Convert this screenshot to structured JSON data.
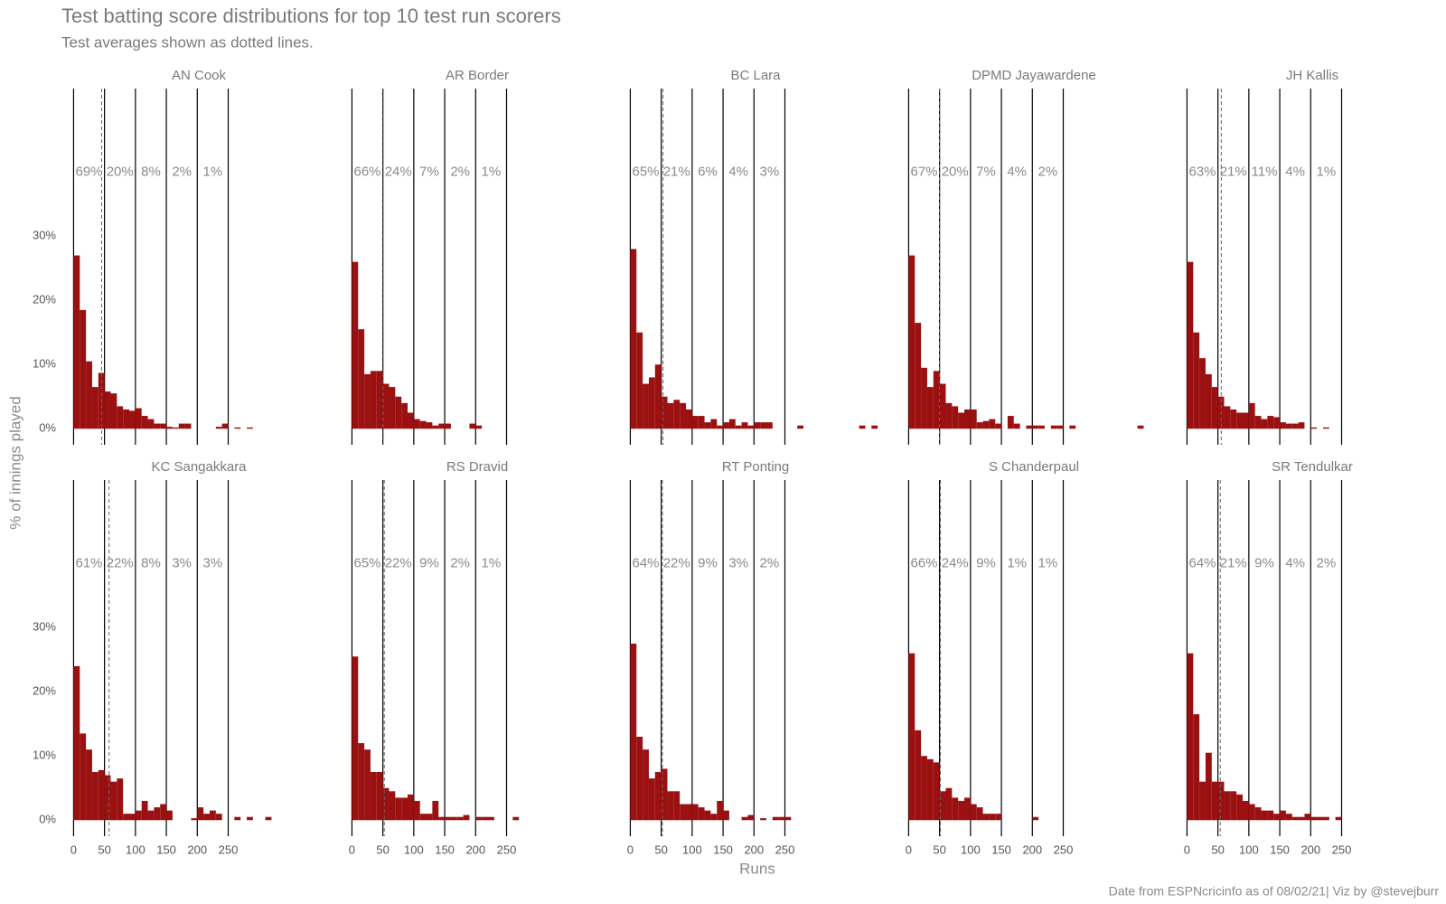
{
  "title": "Test batting score distributions for top 10 test run scorers",
  "subtitle": "Test averages shown as dotted lines.",
  "x_label": "Runs",
  "y_label": "% of innings played",
  "caption": "Date from ESPNcricinfo as of 08/02/21| Viz by @stevejburr",
  "chart_data": [
    {
      "type": "histogram",
      "title": "AN Cook",
      "color": "#9b1111",
      "average": 45.35,
      "bins": [
        0,
        10,
        20,
        30,
        40,
        50,
        60,
        70,
        80,
        90,
        100,
        110,
        120,
        130,
        140,
        150,
        160,
        170,
        180,
        190,
        200,
        210,
        220,
        230,
        240,
        250,
        260,
        270,
        280,
        290,
        300
      ],
      "values": [
        27,
        18.5,
        10.5,
        6.5,
        8.7,
        5.8,
        5.5,
        3.5,
        3,
        2.8,
        3.2,
        2,
        1.5,
        0.8,
        0.8,
        0.3,
        0.2,
        0.8,
        0.8,
        0,
        0,
        0,
        0,
        0.3,
        0.8,
        0,
        0.2,
        0,
        0.2,
        0
      ],
      "band_shares": {
        "values": [
          69,
          20,
          8,
          2,
          1
        ],
        "value_labels": [
          "69%",
          "20%",
          "8%",
          "2%",
          "1%"
        ]
      },
      "xlim": [
        -5,
        410
      ],
      "ylim": [
        -2.5,
        53
      ],
      "xticks": [
        0,
        50,
        100,
        150,
        200,
        250
      ],
      "yticks": [
        {
          "value": 0,
          "label": "0%"
        },
        {
          "value": 10,
          "label": "10%"
        },
        {
          "value": 20,
          "label": "20%"
        },
        {
          "value": 30,
          "label": "30%"
        }
      ]
    },
    {
      "type": "histogram",
      "title": "AR Border",
      "color": "#9b1111",
      "average": 50.56,
      "bins": [
        0,
        10,
        20,
        30,
        40,
        50,
        60,
        70,
        80,
        90,
        100,
        110,
        120,
        130,
        140,
        150,
        160,
        170,
        180,
        190,
        200,
        210
      ],
      "values": [
        26,
        15.5,
        8.5,
        9,
        9,
        7,
        6.5,
        5,
        4,
        2.5,
        1.5,
        1.2,
        1,
        0.5,
        0.8,
        0.8,
        0,
        0,
        0,
        0.8,
        0.5
      ],
      "band_shares": {
        "values": [
          66,
          24,
          7,
          2,
          1
        ],
        "value_labels": [
          "66%",
          "24%",
          "7%",
          "2%",
          "1%"
        ]
      },
      "xlim": [
        -5,
        410
      ],
      "ylim": [
        -2.5,
        53
      ],
      "xticks": [
        0,
        50,
        100,
        150,
        200,
        250
      ]
    },
    {
      "type": "histogram",
      "title": "BC Lara",
      "color": "#9b1111",
      "average": 52.88,
      "bins": [
        0,
        10,
        20,
        30,
        40,
        50,
        60,
        70,
        80,
        90,
        100,
        110,
        120,
        130,
        140,
        150,
        160,
        170,
        180,
        190,
        200,
        210,
        220,
        230,
        240,
        250,
        260,
        270,
        280,
        290,
        300,
        310,
        320,
        330,
        340,
        350,
        360,
        370,
        380,
        390,
        400
      ],
      "values": [
        28,
        15,
        7,
        8,
        10,
        5,
        4,
        4.5,
        4,
        3,
        2,
        2,
        1,
        1.5,
        0.5,
        1,
        1.5,
        0.5,
        1,
        0.5,
        1,
        1,
        1,
        0,
        0,
        0,
        0,
        0.5,
        0,
        0,
        0,
        0,
        0,
        0,
        0,
        0,
        0,
        0.5,
        0,
        0.5
      ],
      "band_shares": {
        "values": [
          65,
          21,
          6,
          4,
          3
        ],
        "value_labels": [
          "65%",
          "21%",
          "6%",
          "4%",
          "3%"
        ]
      },
      "xlim": [
        -5,
        410
      ],
      "ylim": [
        -2.5,
        53
      ],
      "xticks": [
        0,
        50,
        100,
        150,
        200,
        250
      ]
    },
    {
      "type": "histogram",
      "title": "DPMD Jayawardene",
      "color": "#9b1111",
      "average": 49.84,
      "bins": [
        0,
        10,
        20,
        30,
        40,
        50,
        60,
        70,
        80,
        90,
        100,
        110,
        120,
        130,
        140,
        150,
        160,
        170,
        180,
        190,
        200,
        210,
        220,
        230,
        240,
        250,
        260,
        270,
        280,
        290,
        300,
        310,
        320,
        330,
        340,
        350,
        360,
        370,
        380
      ],
      "values": [
        27,
        16.5,
        9.5,
        6.5,
        9,
        7,
        4,
        3.5,
        2.5,
        3,
        3,
        1,
        1.2,
        1.5,
        0.8,
        0,
        2,
        0.8,
        0,
        0.5,
        0.5,
        0.5,
        0,
        0.5,
        0.5,
        0,
        0.5,
        0,
        0,
        0,
        0,
        0,
        0,
        0,
        0,
        0,
        0,
        0.5
      ],
      "band_shares": {
        "values": [
          67,
          20,
          7,
          4,
          2
        ],
        "value_labels": [
          "67%",
          "20%",
          "7%",
          "4%",
          "2%"
        ]
      },
      "xlim": [
        -5,
        410
      ],
      "ylim": [
        -2.5,
        53
      ],
      "xticks": [
        0,
        50,
        100,
        150,
        200,
        250
      ]
    },
    {
      "type": "histogram",
      "title": "JH Kallis",
      "color": "#9b1111",
      "average": 55.37,
      "bins": [
        0,
        10,
        20,
        30,
        40,
        50,
        60,
        70,
        80,
        90,
        100,
        110,
        120,
        130,
        140,
        150,
        160,
        170,
        180,
        190,
        200,
        210,
        220,
        230
      ],
      "values": [
        26,
        15,
        11,
        8.5,
        6.5,
        5,
        3.5,
        3,
        2.5,
        2.5,
        4,
        2,
        1.5,
        2,
        1.8,
        1,
        0.8,
        0.8,
        1,
        0,
        0.2,
        0,
        0.2
      ],
      "band_shares": {
        "values": [
          63,
          21,
          11,
          4,
          1
        ],
        "value_labels": [
          "63%",
          "21%",
          "11%",
          "4%",
          "1%"
        ]
      },
      "xlim": [
        -5,
        410
      ],
      "ylim": [
        -2.5,
        53
      ],
      "xticks": [
        0,
        50,
        100,
        150,
        200,
        250
      ]
    },
    {
      "type": "histogram",
      "title": "KC Sangakkara",
      "color": "#9b1111",
      "average": 57.4,
      "bins": [
        0,
        10,
        20,
        30,
        40,
        50,
        60,
        70,
        80,
        90,
        100,
        110,
        120,
        130,
        140,
        150,
        160,
        170,
        180,
        190,
        200,
        210,
        220,
        230,
        240,
        250,
        260,
        270,
        280,
        290,
        300,
        310,
        320
      ],
      "values": [
        24,
        13.5,
        11,
        7.5,
        7.8,
        7,
        6,
        6.5,
        1,
        1,
        1.5,
        3,
        1.5,
        2,
        2.5,
        1.5,
        0,
        0,
        0,
        0.3,
        2,
        1,
        1.5,
        1,
        0,
        0,
        0.5,
        0,
        0.5,
        0,
        0,
        0.5
      ],
      "band_shares": {
        "values": [
          61,
          22,
          8,
          3,
          3
        ],
        "value_labels": [
          "61%",
          "22%",
          "8%",
          "3%",
          "3%"
        ]
      },
      "xlim": [
        -5,
        410
      ],
      "ylim": [
        -2.5,
        53
      ],
      "xticks": [
        0,
        50,
        100,
        150,
        200,
        250
      ],
      "yticks": [
        {
          "value": 0,
          "label": "0%"
        },
        {
          "value": 10,
          "label": "10%"
        },
        {
          "value": 20,
          "label": "20%"
        },
        {
          "value": 30,
          "label": "30%"
        }
      ]
    },
    {
      "type": "histogram",
      "title": "RS Dravid",
      "color": "#9b1111",
      "average": 52.31,
      "bins": [
        0,
        10,
        20,
        30,
        40,
        50,
        60,
        70,
        80,
        90,
        100,
        110,
        120,
        130,
        140,
        150,
        160,
        170,
        180,
        190,
        200,
        210,
        220,
        230,
        240,
        250,
        260,
        270
      ],
      "values": [
        25.5,
        12,
        11,
        7.5,
        7.5,
        5,
        4.5,
        3.5,
        3.5,
        4,
        3,
        1,
        1,
        3,
        0.5,
        0.5,
        0.5,
        0.5,
        0.8,
        0,
        0.5,
        0.5,
        0.5,
        0,
        0,
        0,
        0.5
      ],
      "band_shares": {
        "values": [
          65,
          22,
          9,
          2,
          1
        ],
        "value_labels": [
          "65%",
          "22%",
          "9%",
          "2%",
          "1%"
        ]
      },
      "xlim": [
        -5,
        410
      ],
      "ylim": [
        -2.5,
        53
      ],
      "xticks": [
        0,
        50,
        100,
        150,
        200,
        250
      ]
    },
    {
      "type": "histogram",
      "title": "RT Ponting",
      "color": "#9b1111",
      "average": 51.85,
      "bins": [
        0,
        10,
        20,
        30,
        40,
        50,
        60,
        70,
        80,
        90,
        100,
        110,
        120,
        130,
        140,
        150,
        160,
        170,
        180,
        190,
        200,
        210,
        220,
        230,
        240,
        250,
        260
      ],
      "values": [
        27.5,
        13,
        11,
        6.5,
        7.5,
        8,
        4.5,
        4.5,
        2.5,
        2.5,
        2.5,
        2,
        1.5,
        1,
        3,
        1.5,
        0,
        0,
        0.5,
        0.8,
        0,
        0.3,
        0,
        0.5,
        0.5,
        0.5
      ],
      "band_shares": {
        "values": [
          64,
          22,
          9,
          3,
          2
        ],
        "value_labels": [
          "64%",
          "22%",
          "9%",
          "3%",
          "2%"
        ]
      },
      "xlim": [
        -5,
        410
      ],
      "ylim": [
        -2.5,
        53
      ],
      "xticks": [
        0,
        50,
        100,
        150,
        200,
        250
      ]
    },
    {
      "type": "histogram",
      "title": "S Chanderpaul",
      "color": "#9b1111",
      "average": 51.37,
      "bins": [
        0,
        10,
        20,
        30,
        40,
        50,
        60,
        70,
        80,
        90,
        100,
        110,
        120,
        130,
        140,
        150,
        160,
        170,
        180,
        190,
        200,
        210
      ],
      "values": [
        26,
        14,
        10,
        9.5,
        9,
        4.5,
        5,
        3.5,
        3,
        3.5,
        2.5,
        2,
        1,
        1,
        1,
        0,
        0,
        0,
        0,
        0,
        0.5
      ],
      "band_shares": {
        "values": [
          66,
          24,
          9,
          1,
          1
        ],
        "value_labels": [
          "66%",
          "24%",
          "9%",
          "1%",
          "1%"
        ]
      },
      "xlim": [
        -5,
        410
      ],
      "ylim": [
        -2.5,
        53
      ],
      "xticks": [
        0,
        50,
        100,
        150,
        200,
        250
      ]
    },
    {
      "type": "histogram",
      "title": "SR Tendulkar",
      "color": "#9b1111",
      "average": 53.78,
      "bins": [
        0,
        10,
        20,
        30,
        40,
        50,
        60,
        70,
        80,
        90,
        100,
        110,
        120,
        130,
        140,
        150,
        160,
        170,
        180,
        190,
        200,
        210,
        220,
        230,
        240,
        250
      ],
      "values": [
        26,
        16.5,
        6,
        10.5,
        6,
        6,
        4.5,
        4.5,
        4,
        3,
        2.5,
        2,
        1.5,
        1.5,
        1,
        1.5,
        1,
        0.5,
        0.5,
        1,
        0.5,
        0.5,
        0.5,
        0,
        0.5
      ],
      "band_shares": {
        "values": [
          64,
          21,
          9,
          4,
          2
        ],
        "value_labels": [
          "64%",
          "21%",
          "9%",
          "4%",
          "2%"
        ]
      },
      "xlim": [
        -5,
        410
      ],
      "ylim": [
        -2.5,
        53
      ],
      "xticks": [
        0,
        50,
        100,
        150,
        200,
        250
      ]
    }
  ]
}
